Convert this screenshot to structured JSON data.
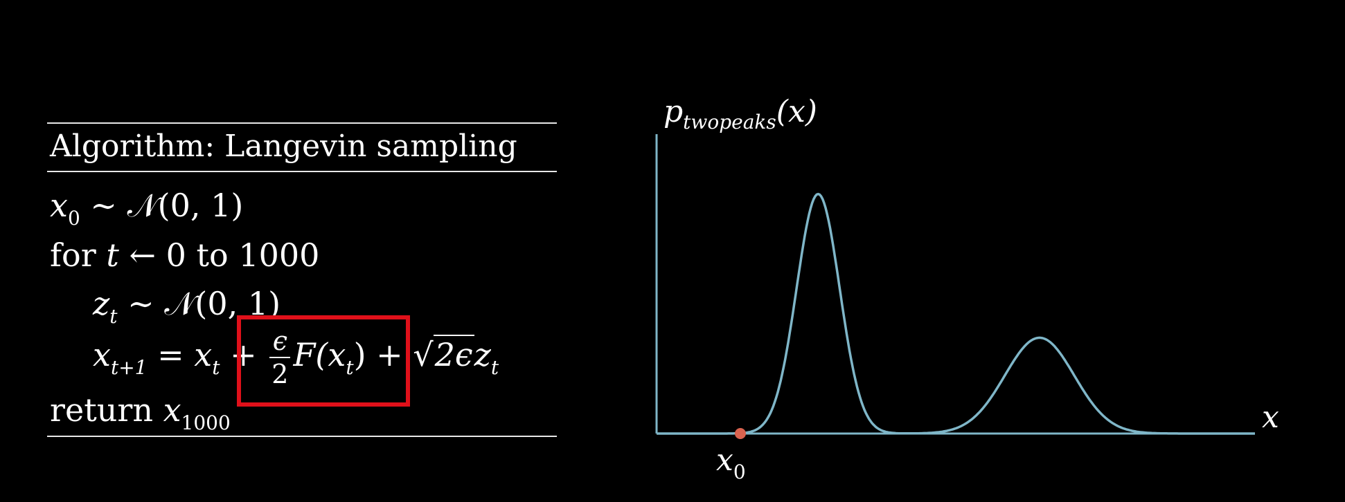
{
  "algorithm": {
    "title": "Algorithm: Langevin sampling",
    "init": {
      "var": "x",
      "sub": "0",
      "rest": " ∼ 𝒩(0, 1)"
    },
    "loop": {
      "kw": "for ",
      "var": "t",
      "rest": " ← 0 to 1000"
    },
    "noise": {
      "var": "z",
      "sub": "t",
      "rest": " ∼ 𝒩(0, 1)"
    },
    "update": {
      "lhs_var": "x",
      "lhs_sub": "t+1",
      "eq": " = ",
      "x_var": "x",
      "x_sub": "t",
      "plus": " + ",
      "frac_num": "ϵ",
      "frac_den": "2",
      "f_text": "F(",
      "f_var": "x",
      "f_sub": "t",
      "f_close": ")",
      "plus2": " + ",
      "sqrt_rad": "2ϵ",
      "z_var": "z",
      "z_sub": "t"
    },
    "ret": {
      "kw": "return ",
      "var": "x",
      "sub": "1000"
    },
    "highlight_color": "#e0101a"
  },
  "plot": {
    "y_label_main": "p",
    "y_label_sub": "twopeaks",
    "y_label_tail": "(x)",
    "x_label": "x",
    "point_label_var": "x",
    "point_label_sub": "0",
    "curve_color": "#7fb6c8",
    "point_color": "#d9634f",
    "axis_color": "#7fb6c8"
  },
  "chart_data": {
    "type": "line",
    "title": "",
    "xlabel": "x",
    "ylabel": "p_twopeaks(x)",
    "grid": false,
    "peaks": [
      {
        "x": 0.27,
        "height": 1.0,
        "width": 0.036
      },
      {
        "x": 0.64,
        "height": 0.4,
        "width": 0.058
      }
    ],
    "xlim": [
      0,
      1
    ],
    "ylim": [
      0,
      1.25
    ],
    "marked_point": {
      "label": "x_0",
      "x": 0.14,
      "y": 0
    }
  }
}
